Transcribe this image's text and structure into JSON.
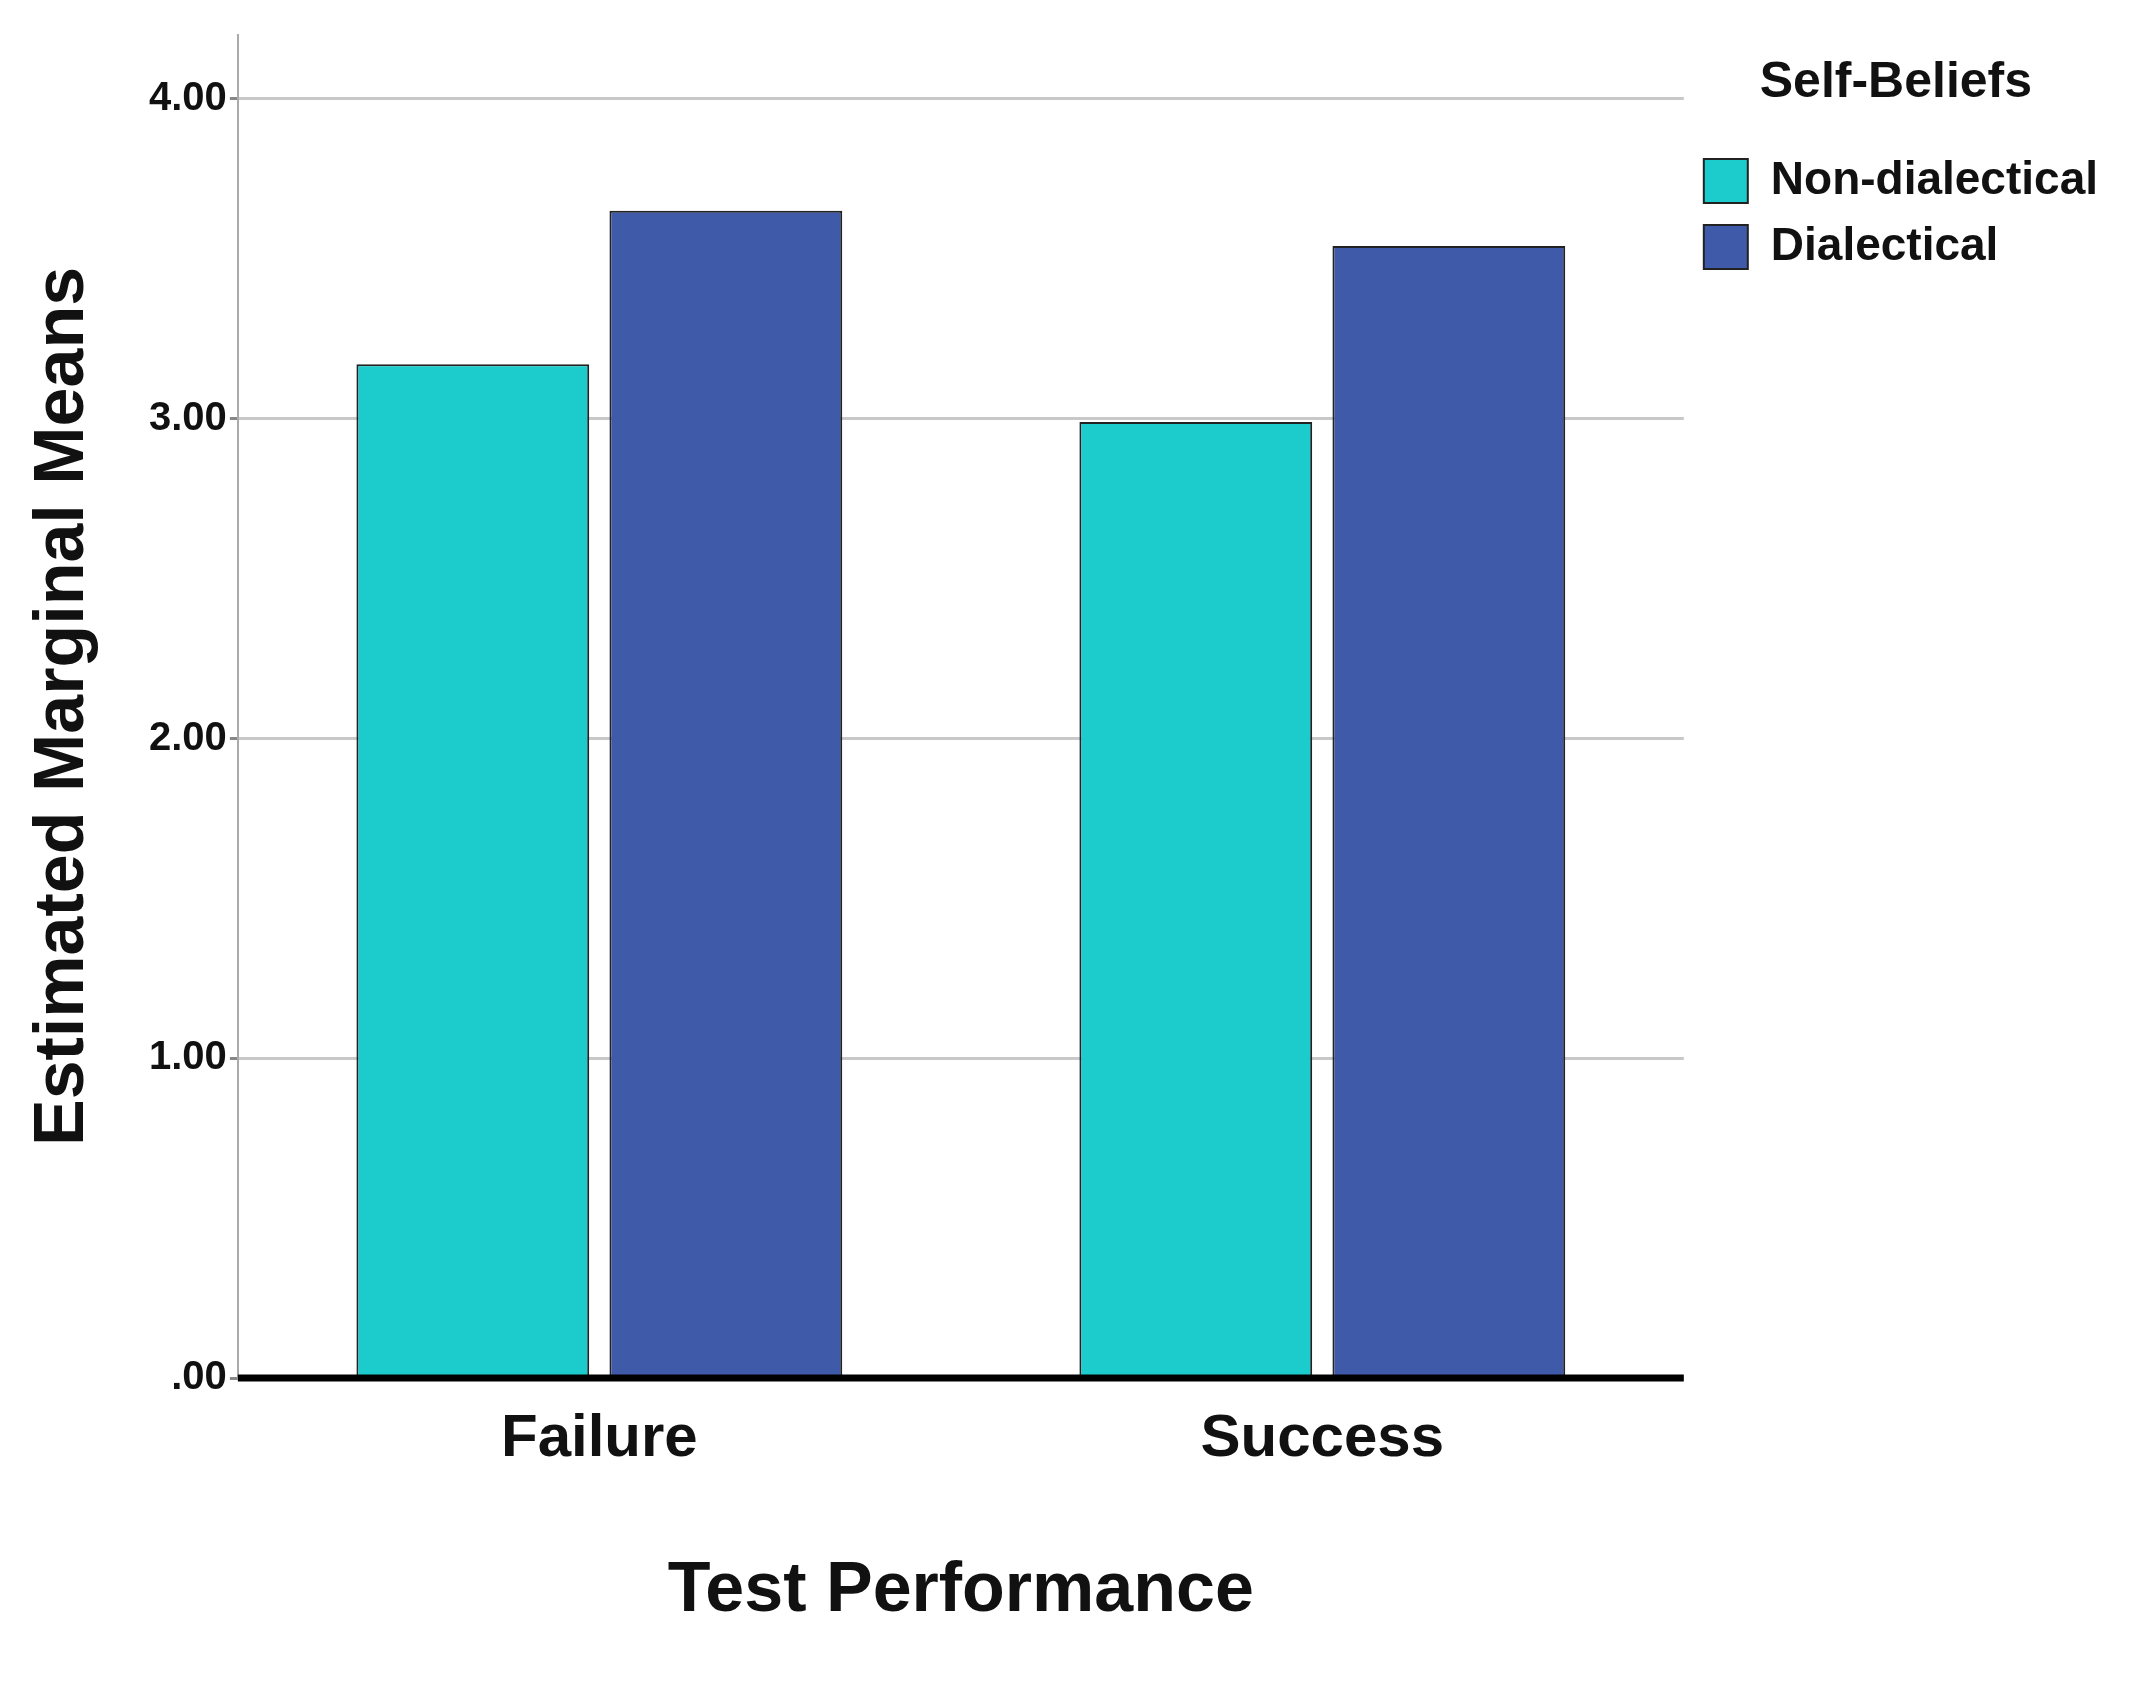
{
  "chart_data": {
    "type": "bar",
    "xlabel": "Test Performance",
    "ylabel": "Estimated Marginal Means",
    "legend_title": "Self-Beliefs",
    "categories": [
      "Failure",
      "Success"
    ],
    "series": [
      {
        "name": "Non-dialectical",
        "color": "#1ccccc",
        "values": [
          3.17,
          2.99
        ]
      },
      {
        "name": "Dialectical",
        "color": "#3f5aa8",
        "values": [
          3.65,
          3.54
        ]
      }
    ],
    "ylim": [
      0,
      4.2
    ],
    "yticks": [
      {
        "value": 0,
        "label": ".00"
      },
      {
        "value": 1,
        "label": "1.00"
      },
      {
        "value": 2,
        "label": "2.00"
      },
      {
        "value": 3,
        "label": "3.00"
      },
      {
        "value": 4,
        "label": "4.00"
      }
    ],
    "grid": "y",
    "legend": "top right"
  }
}
